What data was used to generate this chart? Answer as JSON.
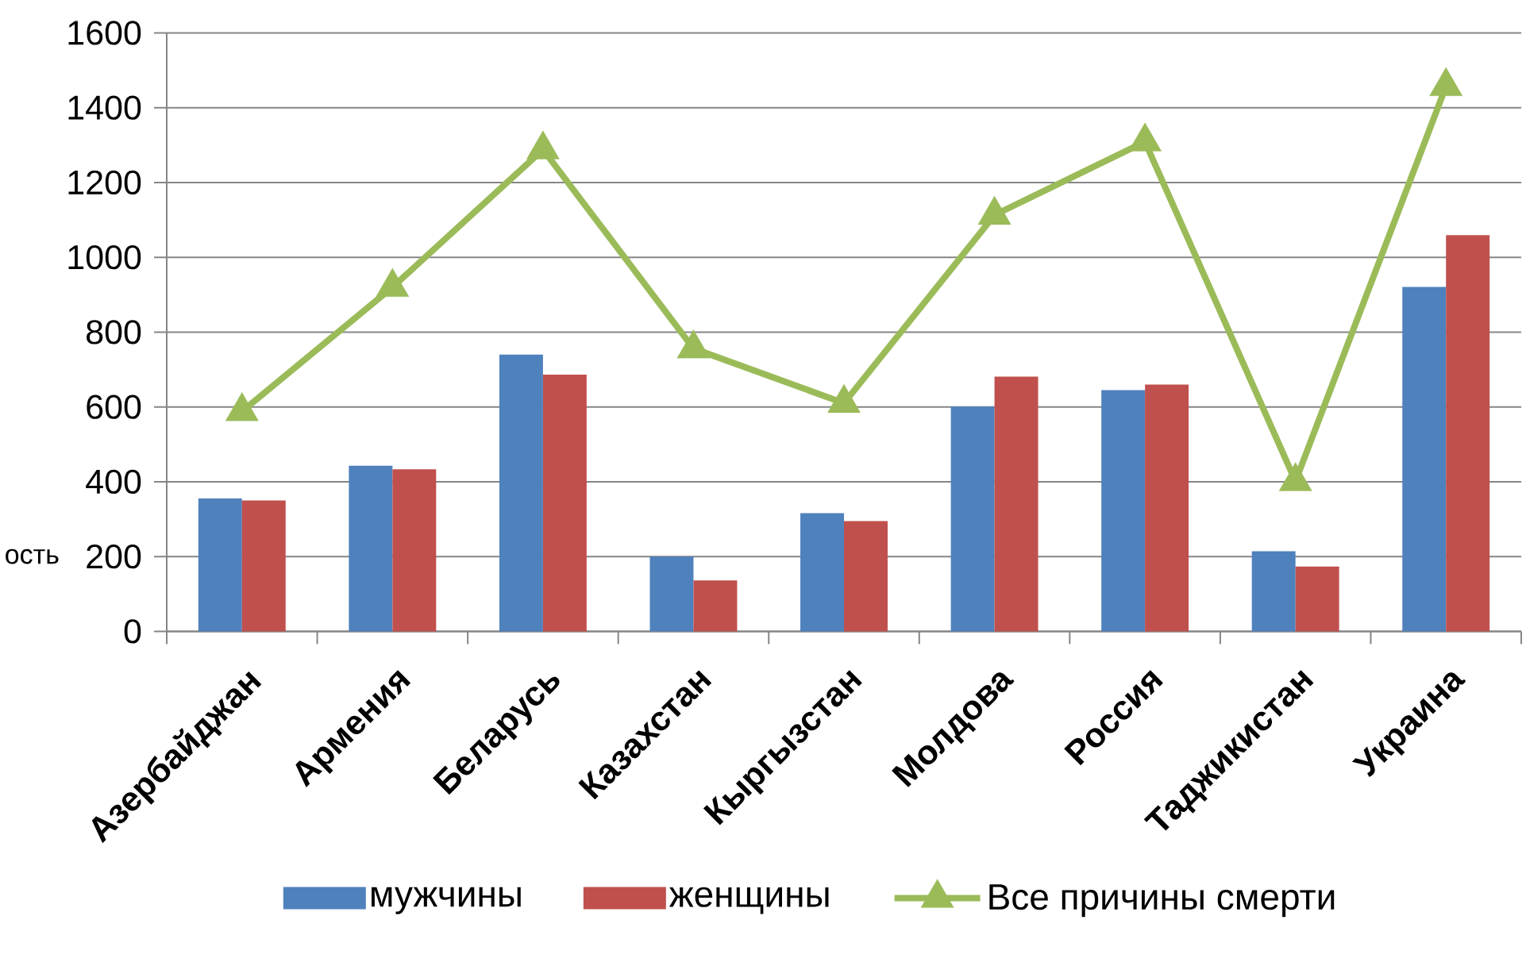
{
  "chart_data": {
    "type": "bar",
    "ylabel": "ость",
    "categories": [
      "Азербайджан",
      "Армения",
      "Беларусь",
      "Казахстан",
      "Кыргызстан",
      "Молдова",
      "Россия",
      "Таджикистан",
      "Украина"
    ],
    "series": [
      {
        "name": "мужчины",
        "color": "#4f81bd",
        "values": [
          355,
          443,
          740,
          200,
          316,
          601,
          645,
          214,
          921
        ]
      },
      {
        "name": "женщины",
        "color": "#c0504d",
        "values": [
          350,
          433,
          686,
          136,
          295,
          681,
          660,
          173,
          1059
        ]
      },
      {
        "name": "Все причины смерти",
        "type": "line",
        "marker": "triangle",
        "line_style": "solid",
        "color": "#9bbb59",
        "values": [
          588,
          920,
          1288,
          756,
          610,
          1113,
          1309,
          401,
          1457
        ]
      }
    ],
    "ylim": [
      0,
      1600
    ],
    "yticks": [
      0,
      200,
      400,
      600,
      800,
      1000,
      1200,
      1400,
      1600
    ],
    "grid": "y",
    "legend": "bottom"
  }
}
